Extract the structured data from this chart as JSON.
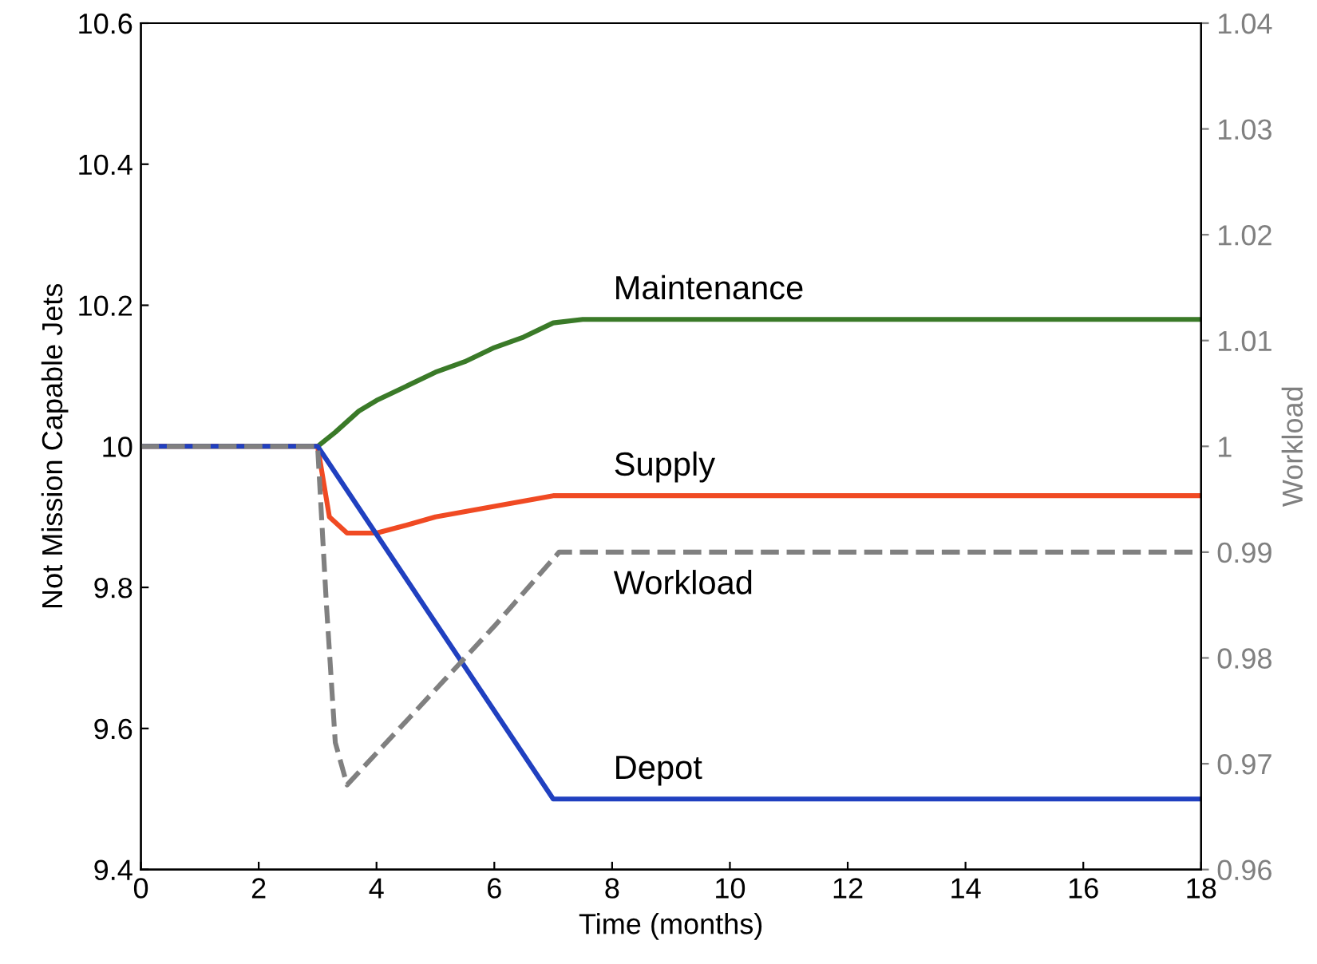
{
  "chart_data": {
    "type": "line",
    "xlabel": "Time (months)",
    "ylabel": "Not Mission Capable Jets",
    "y2label": "Workload",
    "xlim": [
      0,
      18
    ],
    "xticks": [
      0,
      2,
      4,
      6,
      8,
      10,
      12,
      14,
      16,
      18
    ],
    "ylim": [
      9.4,
      10.6
    ],
    "yticks": [
      9.4,
      9.6,
      9.8,
      10,
      10.2,
      10.4,
      10.6
    ],
    "y2lim": [
      0.96,
      1.04
    ],
    "y2ticks": [
      0.96,
      0.97,
      0.98,
      0.99,
      1,
      1.01,
      1.02,
      1.03,
      1.04
    ],
    "grid": false,
    "legend": false,
    "line_style": "solid",
    "marker": "none",
    "series": [
      {
        "name": "Maintenance",
        "color": "#3a7a28",
        "x": [
          0,
          3,
          3.3,
          3.5,
          3.7,
          4,
          4.5,
          5,
          5.5,
          6,
          6.5,
          7,
          7.5,
          18
        ],
        "values": [
          10,
          10,
          10.02,
          10.035,
          10.05,
          10.065,
          10.085,
          10.105,
          10.12,
          10.14,
          10.155,
          10.175,
          10.18,
          10.18
        ]
      },
      {
        "name": "Supply",
        "color": "#f04a23",
        "x": [
          0,
          3,
          3.2,
          3.5,
          4,
          4.5,
          5,
          6,
          7,
          18
        ],
        "values": [
          10,
          10,
          9.9,
          9.877,
          9.877,
          9.888,
          9.9,
          9.915,
          9.93,
          9.93
        ]
      },
      {
        "name": "Workload",
        "color": "#808080",
        "axis": "y2",
        "line_style": "dashed",
        "x": [
          0,
          3,
          3.15,
          3.3,
          3.5,
          4,
          5,
          6,
          7.1,
          18
        ],
        "values": [
          1,
          1,
          0.985,
          0.972,
          0.968,
          0.971,
          0.977,
          0.983,
          0.99,
          0.99
        ]
      },
      {
        "name": "Depot",
        "color": "#2040c0",
        "x": [
          0,
          3,
          7,
          18
        ],
        "values": [
          10,
          10,
          9.5,
          9.5
        ]
      }
    ]
  }
}
